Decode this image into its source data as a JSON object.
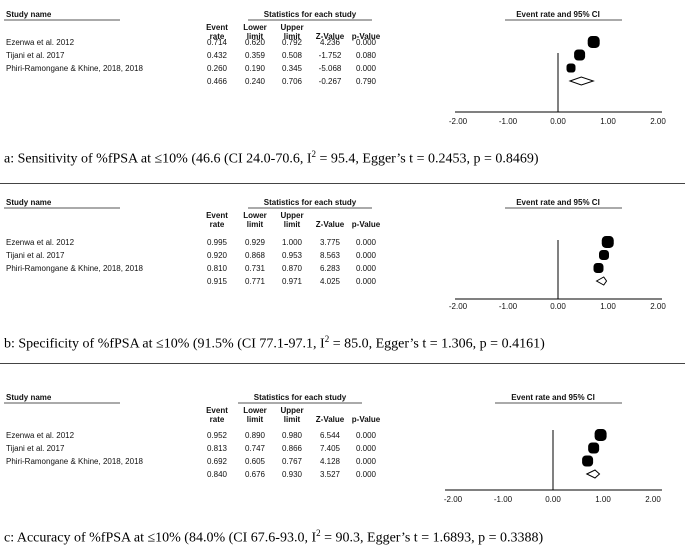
{
  "columns": {
    "study_name": "Study name",
    "stats_header": "Statistics for each study",
    "event_rate": [
      "Event",
      "rate"
    ],
    "lower_limit": [
      "Lower",
      "limit"
    ],
    "upper_limit": [
      "Upper",
      "limit"
    ],
    "z_value": "Z-Value",
    "p_value": "p-Value",
    "plot_header": "Event rate and 95% CI"
  },
  "chart_data": [
    {
      "type": "forest",
      "xlim": [
        -2,
        2
      ],
      "ticks": [
        "-2.00",
        "-1.00",
        "0.00",
        "1.00",
        "2.00"
      ],
      "tick_values": [
        -2,
        -1,
        0,
        1,
        2
      ],
      "studies": [
        {
          "name": "Ezenwa et al. 2012",
          "rate": "0.714",
          "lower": "0.620",
          "upper": "0.792",
          "z": "4.236",
          "p": "0.000"
        },
        {
          "name": "Tijani et al. 2017",
          "rate": "0.432",
          "lower": "0.359",
          "upper": "0.508",
          "z": "-1.752",
          "p": "0.080"
        },
        {
          "name": "Phiri-Ramongane & Khine, 2018, 2018",
          "rate": "0.260",
          "lower": "0.190",
          "upper": "0.345",
          "z": "-5.068",
          "p": "0.000"
        }
      ],
      "summary": {
        "rate": "0.466",
        "lower": "0.240",
        "upper": "0.706",
        "z": "-0.267",
        "p": "0.790"
      },
      "caption": {
        "prefix": "a: Sensitivity of %fPSA at ≤10% (46.6 (CI 24.0-70.6, I",
        "sup": "2",
        "suffix": " = 95.4, Egger’s t = 0.2453, p = 0.8469)"
      }
    },
    {
      "type": "forest",
      "xlim": [
        -2,
        2
      ],
      "ticks": [
        "-2.00",
        "-1.00",
        "0.00",
        "1.00",
        "2.00"
      ],
      "tick_values": [
        -2,
        -1,
        0,
        1,
        2
      ],
      "studies": [
        {
          "name": "Ezenwa et al. 2012",
          "rate": "0.995",
          "lower": "0.929",
          "upper": "1.000",
          "z": "3.775",
          "p": "0.000"
        },
        {
          "name": "Tijani et al. 2017",
          "rate": "0.920",
          "lower": "0.868",
          "upper": "0.953",
          "z": "8.563",
          "p": "0.000"
        },
        {
          "name": "Phiri-Ramongane & Khine, 2018, 2018",
          "rate": "0.810",
          "lower": "0.731",
          "upper": "0.870",
          "z": "6.283",
          "p": "0.000"
        }
      ],
      "summary": {
        "rate": "0.915",
        "lower": "0.771",
        "upper": "0.971",
        "z": "4.025",
        "p": "0.000"
      },
      "caption": {
        "prefix": "b: Specificity of %fPSA at ≤10% (91.5% (CI 77.1-97.1, I",
        "sup": "2",
        "suffix": " = 85.0, Egger’s t = 1.306, p = 0.4161)"
      }
    },
    {
      "type": "forest",
      "xlim": [
        -2,
        2
      ],
      "ticks": [
        "-2.00",
        "-1.00",
        "0.00",
        "1.00",
        "2.00"
      ],
      "tick_values": [
        -2,
        -1,
        0,
        1,
        2
      ],
      "studies": [
        {
          "name": "Ezenwa et al. 2012",
          "rate": "0.952",
          "lower": "0.890",
          "upper": "0.980",
          "z": "6.544",
          "p": "0.000"
        },
        {
          "name": "Tijani et al. 2017",
          "rate": "0.813",
          "lower": "0.747",
          "upper": "0.866",
          "z": "7.405",
          "p": "0.000"
        },
        {
          "name": "Phiri-Ramongane & Khine, 2018, 2018",
          "rate": "0.692",
          "lower": "0.605",
          "upper": "0.767",
          "z": "4.128",
          "p": "0.000"
        }
      ],
      "summary": {
        "rate": "0.840",
        "lower": "0.676",
        "upper": "0.930",
        "z": "3.527",
        "p": "0.000"
      },
      "caption": {
        "prefix": "c: Accuracy of %fPSA at ≤10% (84.0% (CI 67.6-93.0, I",
        "sup": "2",
        "suffix": " = 90.3, Egger’s t = 1.6893, p = 0.3388)"
      }
    }
  ]
}
